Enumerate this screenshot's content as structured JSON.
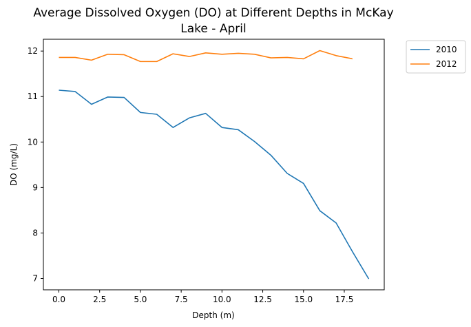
{
  "chart_data": {
    "type": "line",
    "title_lines": [
      "Average Dissolved Oxygen (DO) at Different Depths in McKay",
      "Lake - April"
    ],
    "xlabel": "Depth (m)",
    "ylabel": "DO (mg/L)",
    "xlim": [
      -0.95,
      19.95
    ],
    "ylim": [
      6.75,
      12.26
    ],
    "xticks": [
      0.0,
      2.5,
      5.0,
      7.5,
      10.0,
      12.5,
      15.0,
      17.5
    ],
    "xtick_labels": [
      "0.0",
      "2.5",
      "5.0",
      "7.5",
      "10.0",
      "12.5",
      "15.0",
      "17.5"
    ],
    "yticks": [
      7,
      8,
      9,
      10,
      11,
      12
    ],
    "ytick_labels": [
      "7",
      "8",
      "9",
      "10",
      "11",
      "12"
    ],
    "grid": false,
    "legend_position": "outside-top-right",
    "series": [
      {
        "name": "2010",
        "color": "#1f77b4",
        "x": [
          0,
          1,
          2,
          3,
          4,
          5,
          6,
          7,
          8,
          9,
          10,
          11,
          12,
          13,
          14,
          15,
          16,
          17,
          18,
          19
        ],
        "y": [
          11.14,
          11.11,
          10.83,
          10.99,
          10.98,
          10.65,
          10.61,
          10.32,
          10.53,
          10.63,
          10.32,
          10.27,
          10.01,
          9.71,
          9.31,
          9.09,
          8.49,
          8.22,
          7.59,
          6.99
        ]
      },
      {
        "name": "2012",
        "color": "#ff7f0e",
        "x": [
          0,
          1,
          2,
          3,
          4,
          5,
          6,
          7,
          8,
          9,
          10,
          11,
          12,
          13,
          14,
          15,
          16,
          17,
          18
        ],
        "y": [
          11.86,
          11.86,
          11.8,
          11.93,
          11.92,
          11.77,
          11.77,
          11.94,
          11.88,
          11.96,
          11.93,
          11.95,
          11.93,
          11.85,
          11.86,
          11.83,
          12.01,
          11.9,
          11.83
        ]
      }
    ]
  }
}
